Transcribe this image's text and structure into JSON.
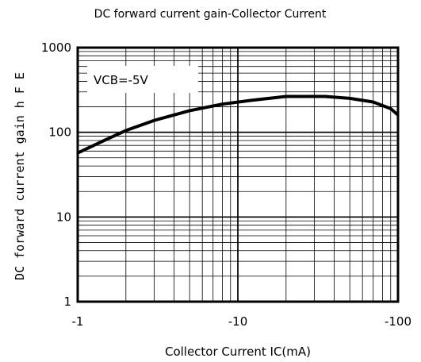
{
  "chart_data": {
    "type": "line",
    "title": "DC forward current gain-Collector Current",
    "xlabel": "Collector Current  IC(mA)",
    "ylabel": "DC forward current gain   h F E",
    "x_scale": "log",
    "y_scale": "log",
    "x_ticks": [
      "-1",
      "-10",
      "-100"
    ],
    "y_ticks": [
      "1",
      "10",
      "100",
      "1000"
    ],
    "xlim": [
      1,
      100
    ],
    "ylim": [
      1,
      1000
    ],
    "grid": true,
    "annotation": "VCB=-5V",
    "series": [
      {
        "x": [
          1.0,
          1.5,
          2.0,
          3.0,
          5.0,
          8.0,
          12.0,
          20.0,
          35.0,
          50.0,
          70.0,
          90.0,
          100.0
        ],
        "y": [
          57,
          82,
          105,
          138,
          180,
          215,
          238,
          265,
          265,
          252,
          228,
          190,
          160
        ]
      }
    ]
  }
}
